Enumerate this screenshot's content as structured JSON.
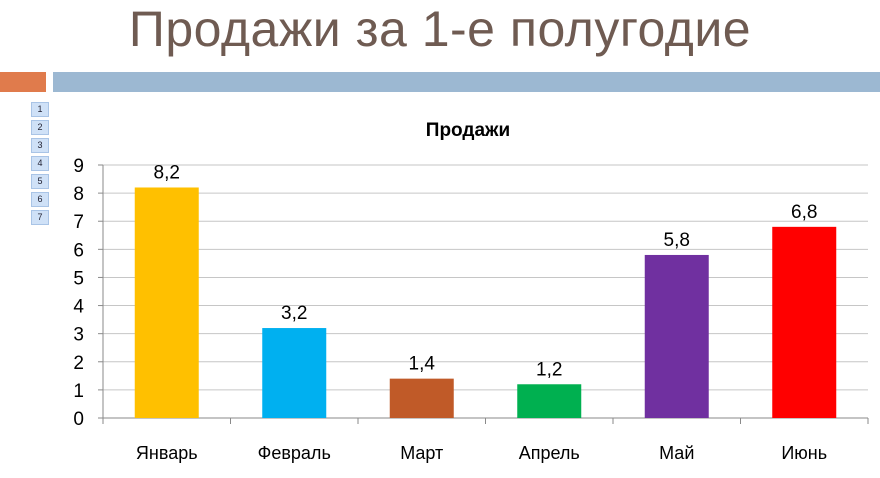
{
  "slide": {
    "title": "Продажи за 1-е полугодие",
    "row_indices": [
      "1",
      "2",
      "3",
      "4",
      "5",
      "6",
      "7"
    ]
  },
  "colors": {
    "accent_orange": "#e07b4c",
    "accent_blue": "#9cb8d2",
    "title_color": "#6f5b52"
  },
  "chart_data": {
    "type": "bar",
    "title": "Продажи",
    "categories": [
      "Январь",
      "Февраль",
      "Март",
      "Апрель",
      "Май",
      "Июнь"
    ],
    "values": [
      8.2,
      3.2,
      1.4,
      1.2,
      5.8,
      6.8
    ],
    "data_labels": [
      "8,2",
      "3,2",
      "1,4",
      "1,2",
      "5,8",
      "6,8"
    ],
    "bar_colors": [
      "#ffc000",
      "#00b0f0",
      "#c05a28",
      "#00b050",
      "#7030a0",
      "#ff0000"
    ],
    "yticks": [
      "0",
      "1",
      "2",
      "3",
      "4",
      "5",
      "6",
      "7",
      "8",
      "9"
    ],
    "ylim": [
      0,
      9
    ],
    "grid": true,
    "legend": "none",
    "xlabel": "",
    "ylabel": ""
  }
}
